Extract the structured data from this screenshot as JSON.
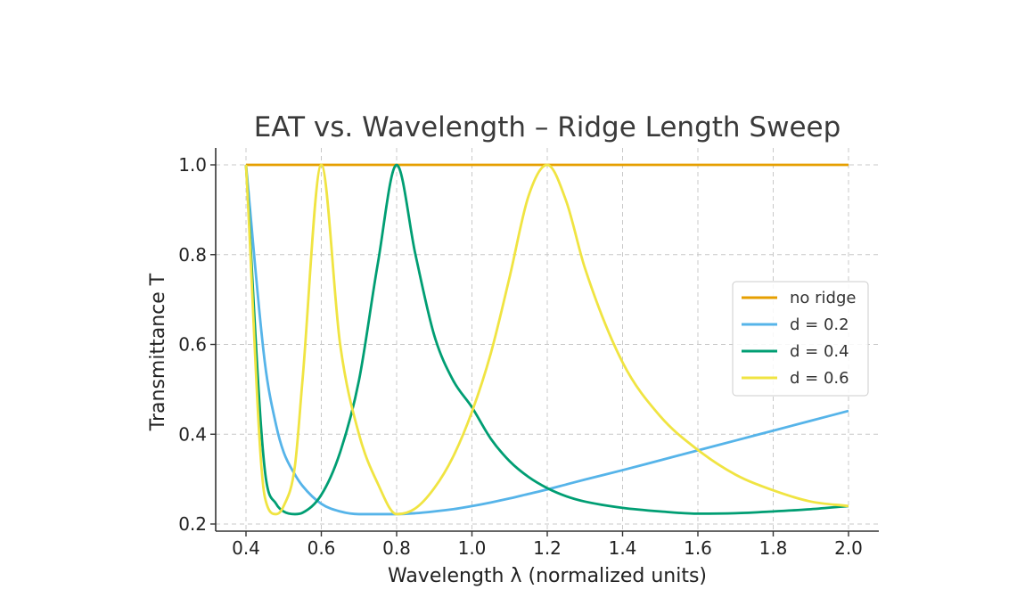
{
  "chart_data": {
    "type": "line",
    "title": "EAT vs. Wavelength – Ridge Length Sweep",
    "xlabel": "Wavelength λ (normalized units)",
    "ylabel": "Transmittance T",
    "xlim": [
      0.4,
      2.0
    ],
    "ylim": [
      0.2,
      1.0
    ],
    "x_ticks": [
      "0.4",
      "0.6",
      "0.8",
      "1.0",
      "1.2",
      "1.4",
      "1.6",
      "1.8",
      "2.0"
    ],
    "y_ticks": [
      "0.2",
      "0.4",
      "0.6",
      "0.8",
      "1.0"
    ],
    "grid": true,
    "legend_position": "center-right",
    "x": [
      0.4,
      0.45,
      0.48,
      0.5,
      0.53,
      0.55,
      0.6,
      0.65,
      0.7,
      0.75,
      0.8,
      0.85,
      0.9,
      0.95,
      1.0,
      1.05,
      1.1,
      1.15,
      1.2,
      1.25,
      1.3,
      1.4,
      1.5,
      1.6,
      1.7,
      1.8,
      1.9,
      2.0
    ],
    "series": [
      {
        "name": "no ridge",
        "color": "#E69F00",
        "values": [
          1.0,
          1.0,
          1.0,
          1.0,
          1.0,
          1.0,
          1.0,
          1.0,
          1.0,
          1.0,
          1.0,
          1.0,
          1.0,
          1.0,
          1.0,
          1.0,
          1.0,
          1.0,
          1.0,
          1.0,
          1.0,
          1.0,
          1.0,
          1.0,
          1.0,
          1.0,
          1.0,
          1.0
        ]
      },
      {
        "name": "d = 0.2",
        "color": "#56B4E9",
        "values": [
          1.0,
          0.56,
          0.42,
          0.36,
          0.31,
          0.285,
          0.245,
          0.228,
          0.222,
          0.222,
          0.222,
          0.224,
          0.228,
          0.233,
          0.24,
          0.248,
          0.257,
          0.267,
          0.277,
          0.288,
          0.299,
          0.32,
          0.342,
          0.364,
          0.386,
          0.408,
          0.43,
          0.452
        ]
      },
      {
        "name": "d = 0.4",
        "color": "#009E73",
        "values": [
          1.0,
          0.32,
          0.245,
          0.228,
          0.222,
          0.225,
          0.265,
          0.36,
          0.52,
          0.78,
          1.0,
          0.8,
          0.62,
          0.52,
          0.46,
          0.39,
          0.34,
          0.305,
          0.28,
          0.262,
          0.25,
          0.236,
          0.228,
          0.223,
          0.224,
          0.228,
          0.233,
          0.24
        ]
      },
      {
        "name": "d = 0.6",
        "color": "#F0E442",
        "values": [
          1.0,
          0.26,
          0.222,
          0.24,
          0.33,
          0.52,
          1.0,
          0.6,
          0.4,
          0.29,
          0.222,
          0.235,
          0.28,
          0.35,
          0.45,
          0.58,
          0.75,
          0.93,
          1.0,
          0.92,
          0.77,
          0.56,
          0.44,
          0.365,
          0.31,
          0.275,
          0.25,
          0.24
        ]
      }
    ]
  }
}
